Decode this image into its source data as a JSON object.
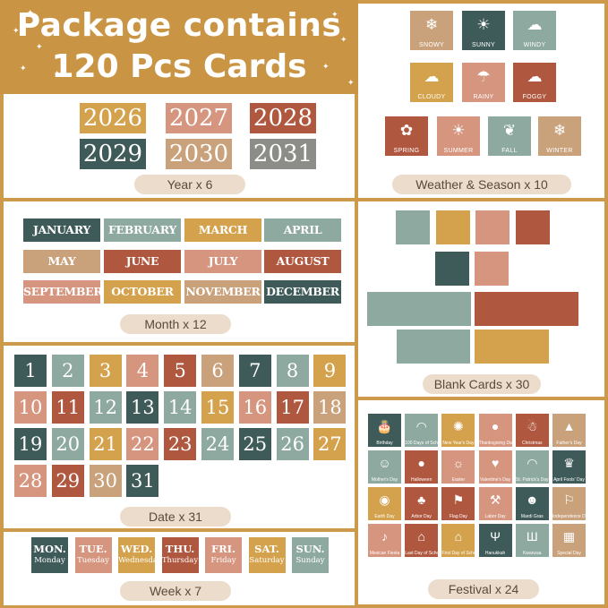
{
  "header": {
    "line1": "Package contains",
    "line2": "120 Pcs Cards"
  },
  "colors": {
    "gold": "#c99545",
    "teal": "#3f5b59",
    "sage": "#8ea99f",
    "terracotta": "#b0583f",
    "blush": "#d6957f",
    "tan": "#c9a27c",
    "mustard": "#d4a24c",
    "grey": "#8c8c88"
  },
  "years": {
    "cards": [
      "2026",
      "2027",
      "2028",
      "2029",
      "2030",
      "2031"
    ],
    "label": "Year x 6"
  },
  "weather": {
    "cards": [
      {
        "label": "SNOWY",
        "icon": "snowflake-icon"
      },
      {
        "label": "SUNNY",
        "icon": "sun-icon"
      },
      {
        "label": "WINDY",
        "icon": "wind-cloud-icon"
      },
      {
        "label": "CLOUDY",
        "icon": "cloud-icon"
      },
      {
        "label": "RAINY",
        "icon": "rain-cloud-icon"
      },
      {
        "label": "FOGGY",
        "icon": "fog-cloud-icon"
      },
      {
        "label": "SPRING",
        "icon": "flower-icon"
      },
      {
        "label": "SUMMER",
        "icon": "sun-icon"
      },
      {
        "label": "FALL",
        "icon": "maple-leaf-icon"
      },
      {
        "label": "WINTER",
        "icon": "snowflake-icon"
      }
    ],
    "label": "Weather & Season x 10"
  },
  "months": {
    "cards": [
      "JANUARY",
      "FEBRUARY",
      "MARCH",
      "APRIL",
      "MAY",
      "JUNE",
      "JULY",
      "AUGUST",
      "SEPTEMBER",
      "OCTOBER",
      "NOVEMBER",
      "DECEMBER"
    ],
    "label": "Month x 12"
  },
  "blank": {
    "label": "Blank Cards x 30"
  },
  "dates": {
    "cards": [
      "1",
      "2",
      "3",
      "4",
      "5",
      "6",
      "7",
      "8",
      "9",
      "10",
      "11",
      "12",
      "13",
      "14",
      "15",
      "16",
      "17",
      "18",
      "19",
      "20",
      "21",
      "22",
      "23",
      "24",
      "25",
      "26",
      "27",
      "28",
      "29",
      "30",
      "31"
    ],
    "label": "Date x 31"
  },
  "festival": {
    "cards": [
      {
        "label": "Birthday",
        "icon": "cake-icon"
      },
      {
        "label": "100 Days of School",
        "icon": "rainbow-icon"
      },
      {
        "label": "New Year's Day",
        "icon": "firework-icon"
      },
      {
        "label": "Thanksgiving Day",
        "icon": "turkey-icon"
      },
      {
        "label": "Christmas",
        "icon": "santa-icon"
      },
      {
        "label": "Father's Day",
        "icon": "hat-icon"
      },
      {
        "label": "Mother's Day",
        "icon": "mother-icon"
      },
      {
        "label": "Halloween",
        "icon": "pumpkin-icon"
      },
      {
        "label": "Easter",
        "icon": "bunny-icon"
      },
      {
        "label": "Valentine's Day",
        "icon": "heart-envelope-icon"
      },
      {
        "label": "St. Patrick's Day",
        "icon": "rainbow-icon"
      },
      {
        "label": "April Fools' Day",
        "icon": "jester-hat-icon"
      },
      {
        "label": "Earth Day",
        "icon": "earth-icon"
      },
      {
        "label": "Arbor Day",
        "icon": "tree-icon"
      },
      {
        "label": "Flag Day",
        "icon": "flag-icon"
      },
      {
        "label": "Labor Day",
        "icon": "worker-icon"
      },
      {
        "label": "Mardi Gras",
        "icon": "mask-icon"
      },
      {
        "label": "Independence Day",
        "icon": "us-flag-icon"
      },
      {
        "label": "Mexican Fiesta",
        "icon": "maracas-icon"
      },
      {
        "label": "Last Day of School",
        "icon": "school-icon"
      },
      {
        "label": "First Day of School",
        "icon": "school-icon"
      },
      {
        "label": "Hanukkah",
        "icon": "menorah-icon"
      },
      {
        "label": "Kwanzaa",
        "icon": "kinara-icon"
      },
      {
        "label": "Special Day",
        "icon": "calendar-icon"
      }
    ],
    "label": "Festival x 24"
  },
  "weeks": {
    "cards": [
      {
        "abbr": "MON.",
        "full": "Monday"
      },
      {
        "abbr": "TUE.",
        "full": "Tuesday"
      },
      {
        "abbr": "WED.",
        "full": "Wednesday"
      },
      {
        "abbr": "THU.",
        "full": "Thursday"
      },
      {
        "abbr": "FRI.",
        "full": "Friday"
      },
      {
        "abbr": "SAT.",
        "full": "Saturday"
      },
      {
        "abbr": "SUN.",
        "full": "Sunday"
      }
    ],
    "label": "Week x 7"
  }
}
